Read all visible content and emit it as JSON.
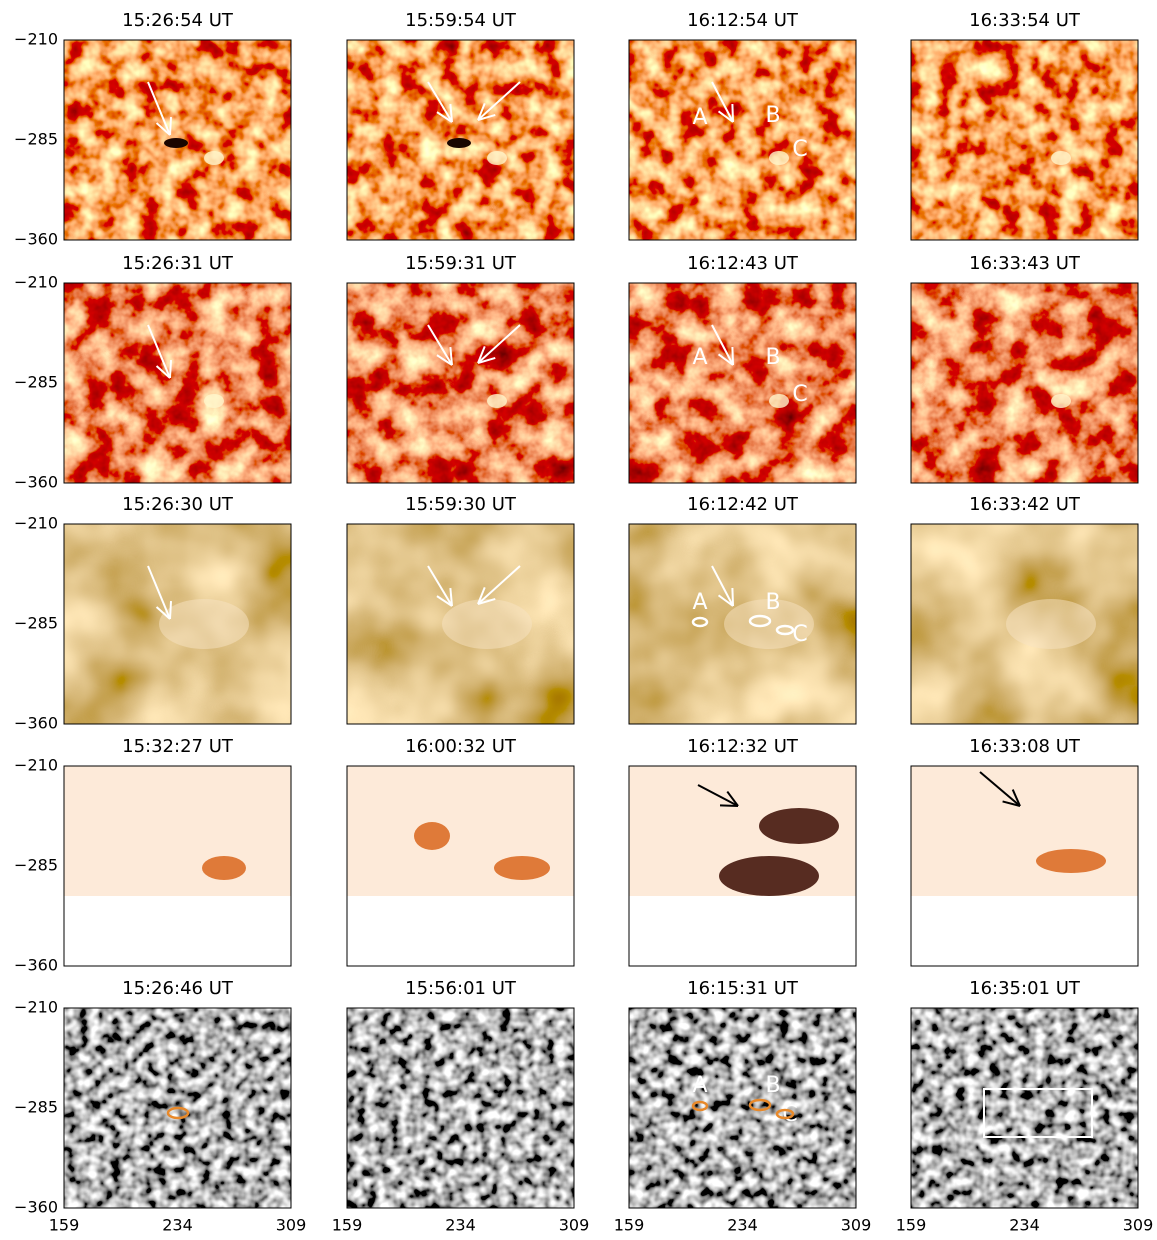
{
  "rows": [
    {
      "titles": [
        "15:26:54 UT",
        "15:59:54 UT",
        "16:12:54 UT",
        "16:33:54 UT"
      ]
    },
    {
      "titles": [
        "15:26:31 UT",
        "15:59:31 UT",
        "16:12:43 UT",
        "16:33:43 UT"
      ]
    },
    {
      "titles": [
        "15:26:30 UT",
        "15:59:30 UT",
        "16:12:42 UT",
        "16:33:42 UT"
      ]
    },
    {
      "titles": [
        "15:32:27 UT",
        "16:00:32 UT",
        "16:12:32 UT",
        "16:33:08 UT"
      ]
    },
    {
      "titles": [
        "15:26:46 UT",
        "15:56:01 UT",
        "16:15:31 UT",
        "16:35:01 UT"
      ]
    }
  ],
  "y_axis": {
    "ticks": [
      "−210",
      "−285",
      "−360"
    ]
  },
  "x_axis": {
    "ticks": [
      "159",
      "234",
      "309"
    ]
  },
  "markers": [
    "A",
    "B",
    "C"
  ]
}
